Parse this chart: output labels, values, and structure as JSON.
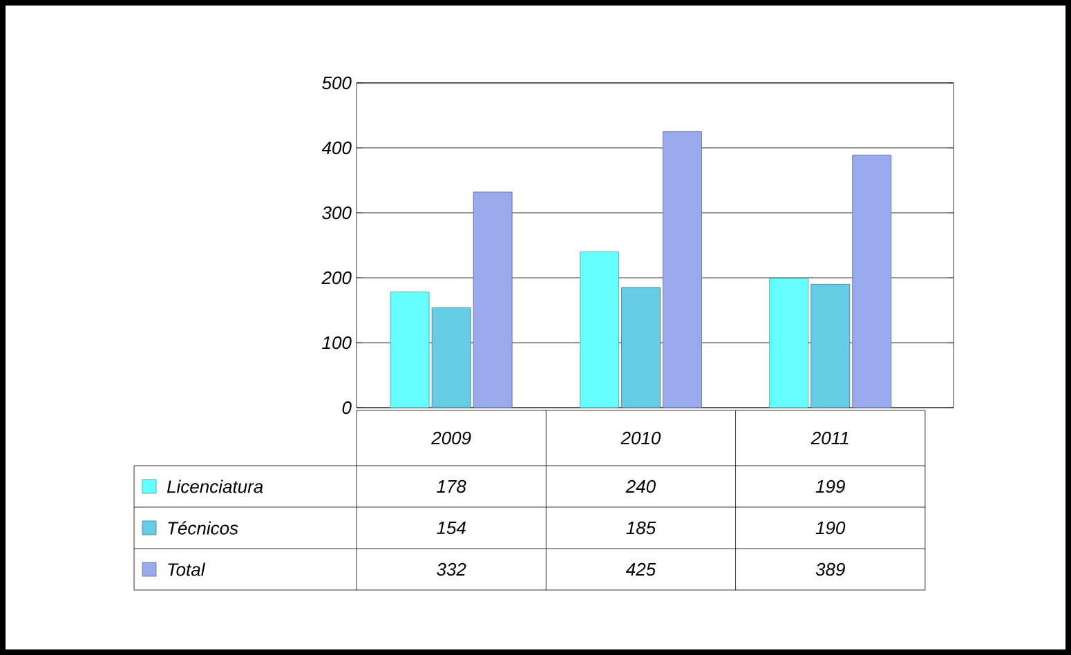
{
  "chart_data": {
    "type": "bar",
    "categories": [
      "2009",
      "2010",
      "2011"
    ],
    "series": [
      {
        "name": "Licenciatura",
        "color": "#66ffff",
        "values": [
          178,
          240,
          199
        ]
      },
      {
        "name": "Técnicos",
        "color": "#66cce6",
        "values": [
          154,
          185,
          190
        ]
      },
      {
        "name": "Total",
        "color": "#99aaee",
        "values": [
          332,
          425,
          389
        ]
      }
    ],
    "ylim": [
      0,
      500
    ],
    "yticks": [
      0,
      100,
      200,
      300,
      400,
      500
    ],
    "grid": "y",
    "data_labels": true,
    "legend": "bottom left"
  }
}
